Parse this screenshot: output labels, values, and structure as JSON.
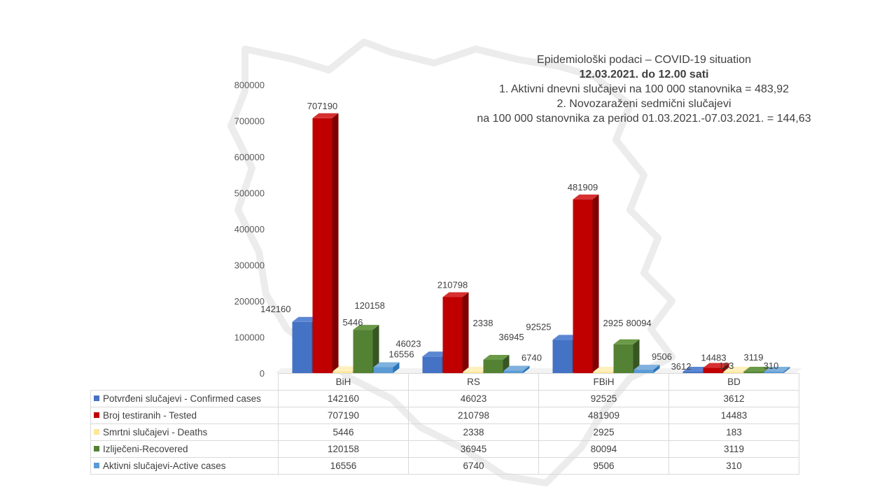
{
  "title": {
    "line1": "Epidemiološki podaci – COVID-19 situation",
    "line2": "12.03.2021. do 12.00 sati",
    "line3": "1. Aktivni dnevni slučajevi na 100 000 stanovnika = 483,92",
    "line4": "2. Novozaraženi sedmični slučajevi",
    "line5": "na 100 000 stanovnika za period 01.03.2021.-07.03.2021. = 144,63"
  },
  "chart_data": {
    "type": "bar",
    "categories": [
      "BiH",
      "RS",
      "FBiH",
      "BD"
    ],
    "series": [
      {
        "name": "Potvrđeni slučajevi - Confirmed cases",
        "color": "#4472c4",
        "top": "#5b86d3",
        "side": "#2f5496",
        "values": [
          142160,
          46023,
          92525,
          3612
        ]
      },
      {
        "name": "Broj testiranih - Tested",
        "color": "#c00000",
        "top": "#d63030",
        "side": "#7f0000",
        "values": [
          707190,
          210798,
          481909,
          14483
        ]
      },
      {
        "name": "Smrtni slučajevi - Deaths",
        "color": "#ffe699",
        "top": "#fff0bd",
        "side": "#d9c27a",
        "values": [
          5446,
          2338,
          2925,
          183
        ]
      },
      {
        "name": "Izliječeni-Recovered",
        "color": "#548235",
        "top": "#6a9a47",
        "side": "#375623",
        "values": [
          120158,
          36945,
          80094,
          3119
        ]
      },
      {
        "name": "Aktivni slučajevi-Active cases",
        "color": "#5b9bd5",
        "top": "#7fb1de",
        "side": "#2e75b6",
        "values": [
          16556,
          6740,
          9506,
          310
        ]
      }
    ],
    "ylim": [
      0,
      800000
    ],
    "yticks": [
      "0",
      "100000",
      "200000",
      "300000",
      "400000",
      "500000",
      "600000",
      "700000",
      "800000"
    ],
    "grid": false,
    "legend": "data-table-below"
  },
  "table": {
    "columns": [
      "BiH",
      "RS",
      "FBiH",
      "BD"
    ],
    "rows": [
      {
        "label": "Potvrđeni slučajevi - Confirmed cases",
        "color": "#4472c4",
        "values": [
          "142160",
          "46023",
          "92525",
          "3612"
        ]
      },
      {
        "label": "Broj testiranih - Tested",
        "color": "#c00000",
        "values": [
          "707190",
          "210798",
          "481909",
          "14483"
        ]
      },
      {
        "label": "Smrtni slučajevi - Deaths",
        "color": "#ffe699",
        "values": [
          "5446",
          "2338",
          "2925",
          "183"
        ]
      },
      {
        "label": "Izliječeni-Recovered",
        "color": "#548235",
        "values": [
          "120158",
          "36945",
          "80094",
          "3119"
        ]
      },
      {
        "label": "Aktivni slučajevi-Active cases",
        "color": "#5b9bd5",
        "values": [
          "16556",
          "6740",
          "9506",
          "310"
        ]
      }
    ]
  }
}
